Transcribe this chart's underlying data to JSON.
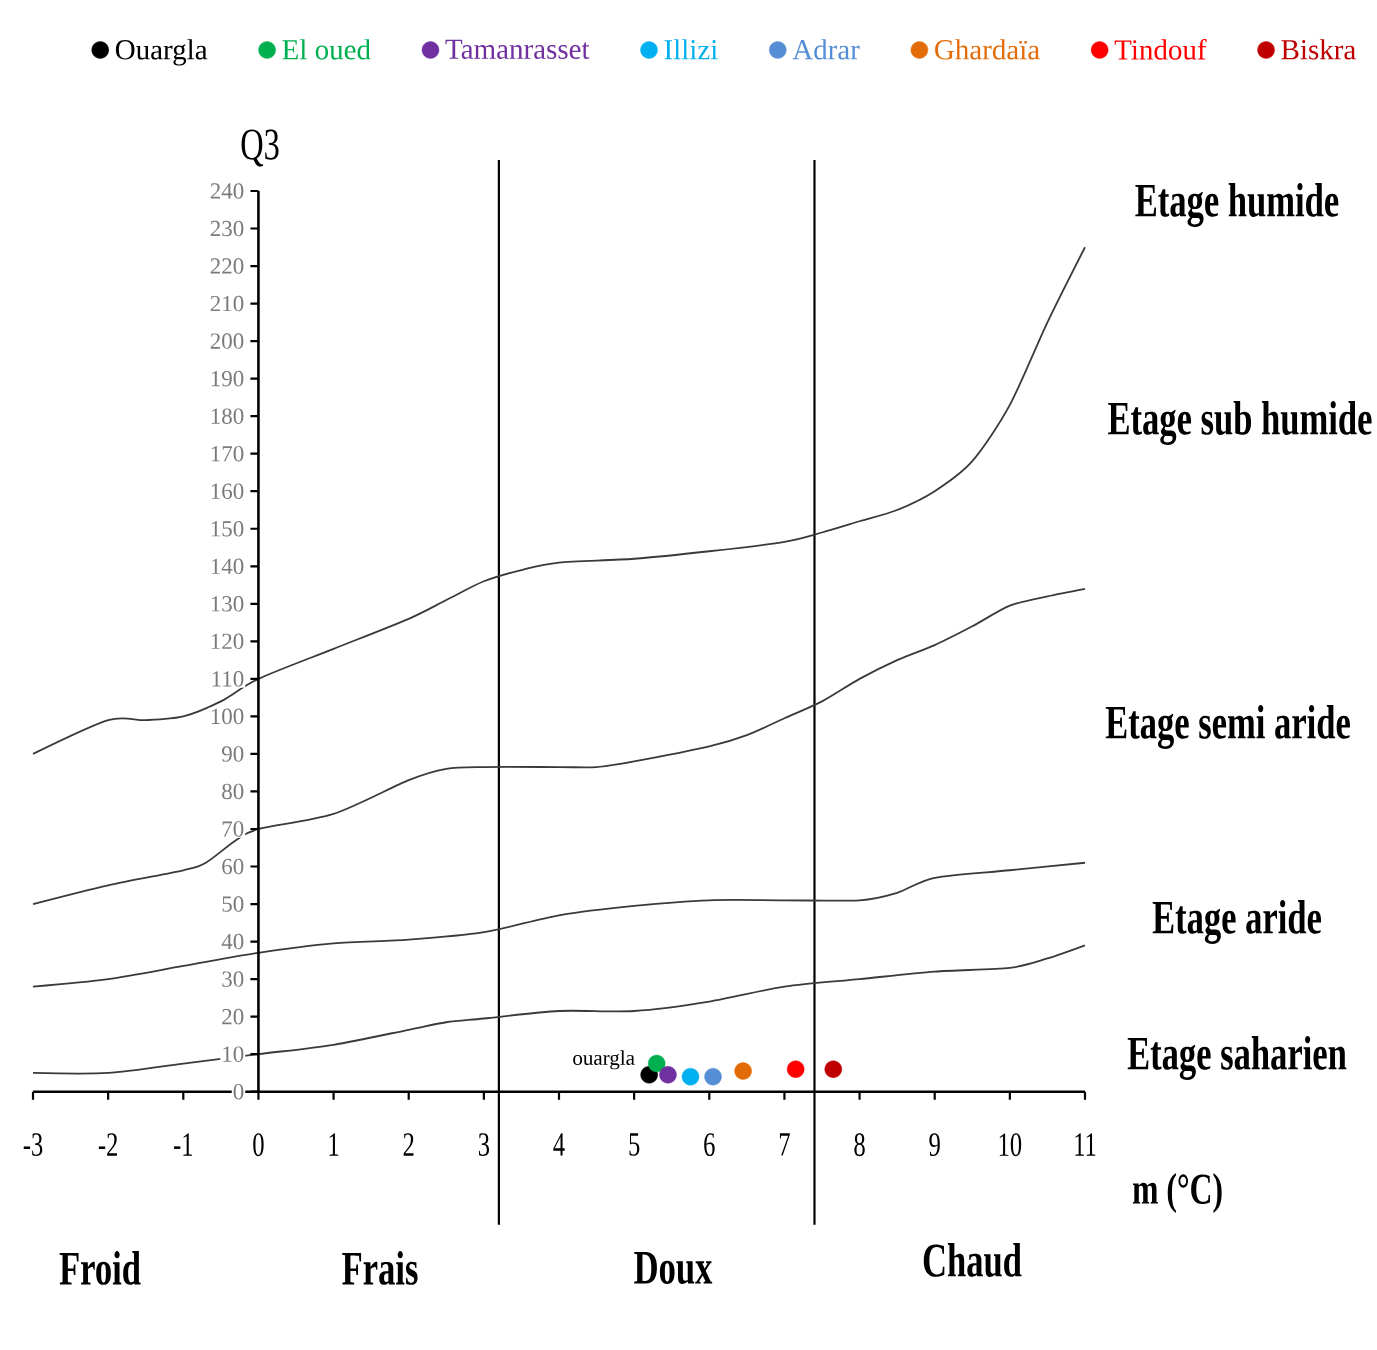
{
  "chart_data": {
    "type": "scatter",
    "xlabel": "m (°C)",
    "ylabel": "Q3",
    "xlim": [
      -3,
      11
    ],
    "ylim": [
      0,
      240
    ],
    "xticks": [
      -3,
      -2,
      -1,
      0,
      1,
      2,
      3,
      4,
      5,
      6,
      7,
      8,
      9,
      10,
      11
    ],
    "yticks": [
      0,
      10,
      20,
      30,
      40,
      50,
      60,
      70,
      80,
      90,
      100,
      110,
      120,
      130,
      140,
      150,
      160,
      170,
      180,
      190,
      200,
      210,
      220,
      230,
      240
    ],
    "marker": "circle",
    "legend": "top",
    "series": [
      {
        "type": "line",
        "marker": "none",
        "color": "#3a3a3a",
        "x": [
          -3,
          -2,
          -1.5,
          -1,
          -0.5,
          0,
          1,
          2,
          2.5,
          3,
          3.5,
          4,
          5,
          6,
          7,
          7.5,
          8,
          8.5,
          9,
          9.5,
          10,
          10.5,
          11
        ],
        "values": [
          90,
          99,
          99,
          100,
          104,
          110,
          118,
          126,
          131,
          136,
          139,
          141,
          142,
          144,
          146.5,
          149,
          152,
          155,
          160,
          168,
          183,
          205,
          225
        ]
      },
      {
        "type": "line",
        "marker": "none",
        "color": "#3a3a3a",
        "x": [
          -3,
          -2,
          -1,
          -0.7,
          -0.3,
          0,
          1,
          2,
          2.5,
          3,
          4,
          4.5,
          5,
          6,
          6.5,
          7,
          7.5,
          8,
          8.5,
          9,
          9.5,
          10,
          10.5,
          11
        ],
        "values": [
          50,
          55,
          59,
          61,
          67,
          70,
          74,
          83,
          86,
          86.5,
          86.5,
          86.5,
          88,
          92,
          95,
          99.5,
          104,
          110,
          115,
          119,
          124,
          129.5,
          132,
          134
        ]
      },
      {
        "type": "line",
        "marker": "none",
        "color": "#3a3a3a",
        "x": [
          -3,
          -2,
          -1,
          0,
          1,
          2,
          3,
          4,
          5,
          6,
          7,
          8,
          8.5,
          9,
          10,
          11
        ],
        "values": [
          28,
          30,
          33.5,
          37,
          39.5,
          40.5,
          42.5,
          47,
          49.5,
          51,
          51,
          51,
          53,
          57,
          59,
          61
        ]
      },
      {
        "type": "line",
        "marker": "none",
        "color": "#3a3a3a",
        "x": [
          -3,
          -2,
          -1,
          0,
          1,
          2,
          2.5,
          3,
          4,
          5,
          6,
          7,
          8,
          9,
          10,
          10.5,
          11
        ],
        "values": [
          5,
          5,
          7.5,
          10,
          12.5,
          16.5,
          18.5,
          19.5,
          21.5,
          21.5,
          24,
          28,
          30,
          32,
          33,
          35.5,
          39
        ]
      },
      {
        "name": "Ouargla",
        "color": "#000000",
        "x": [
          5.2
        ],
        "values": [
          4.5
        ]
      },
      {
        "name": "El oued",
        "color": "#00b050",
        "x": [
          5.3
        ],
        "values": [
          7.5
        ]
      },
      {
        "name": "Tamanrasset",
        "color": "#7030a0",
        "x": [
          5.45
        ],
        "values": [
          4.5
        ]
      },
      {
        "name": "Illizi",
        "color": "#00b0f0",
        "x": [
          5.75
        ],
        "values": [
          4
        ]
      },
      {
        "name": "Adrar",
        "color": "#558ed5",
        "x": [
          6.05
        ],
        "values": [
          4
        ]
      },
      {
        "name": "Ghardaïa",
        "color": "#e36c09",
        "x": [
          6.45
        ],
        "values": [
          5.5
        ]
      },
      {
        "name": "Tindouf",
        "color": "#ff0000",
        "x": [
          7.15
        ],
        "values": [
          6
        ]
      },
      {
        "name": "Biskra",
        "color": "#c00000",
        "x": [
          7.65
        ],
        "values": [
          6
        ]
      }
    ],
    "ref_lines": [
      {
        "axis": "x",
        "value": 3.2,
        "color": "#000000"
      },
      {
        "axis": "x",
        "value": 7.4,
        "color": "#000000"
      }
    ],
    "annotations": [
      "Etage humide",
      "Etage sub humide",
      "Etage semi aride",
      "Etage aride",
      "Etage saharien",
      "Froid",
      "Frais",
      "Doux",
      "Chaud",
      {
        "text": "ouargla",
        "x": 5.2,
        "y": 4.5
      }
    ]
  }
}
